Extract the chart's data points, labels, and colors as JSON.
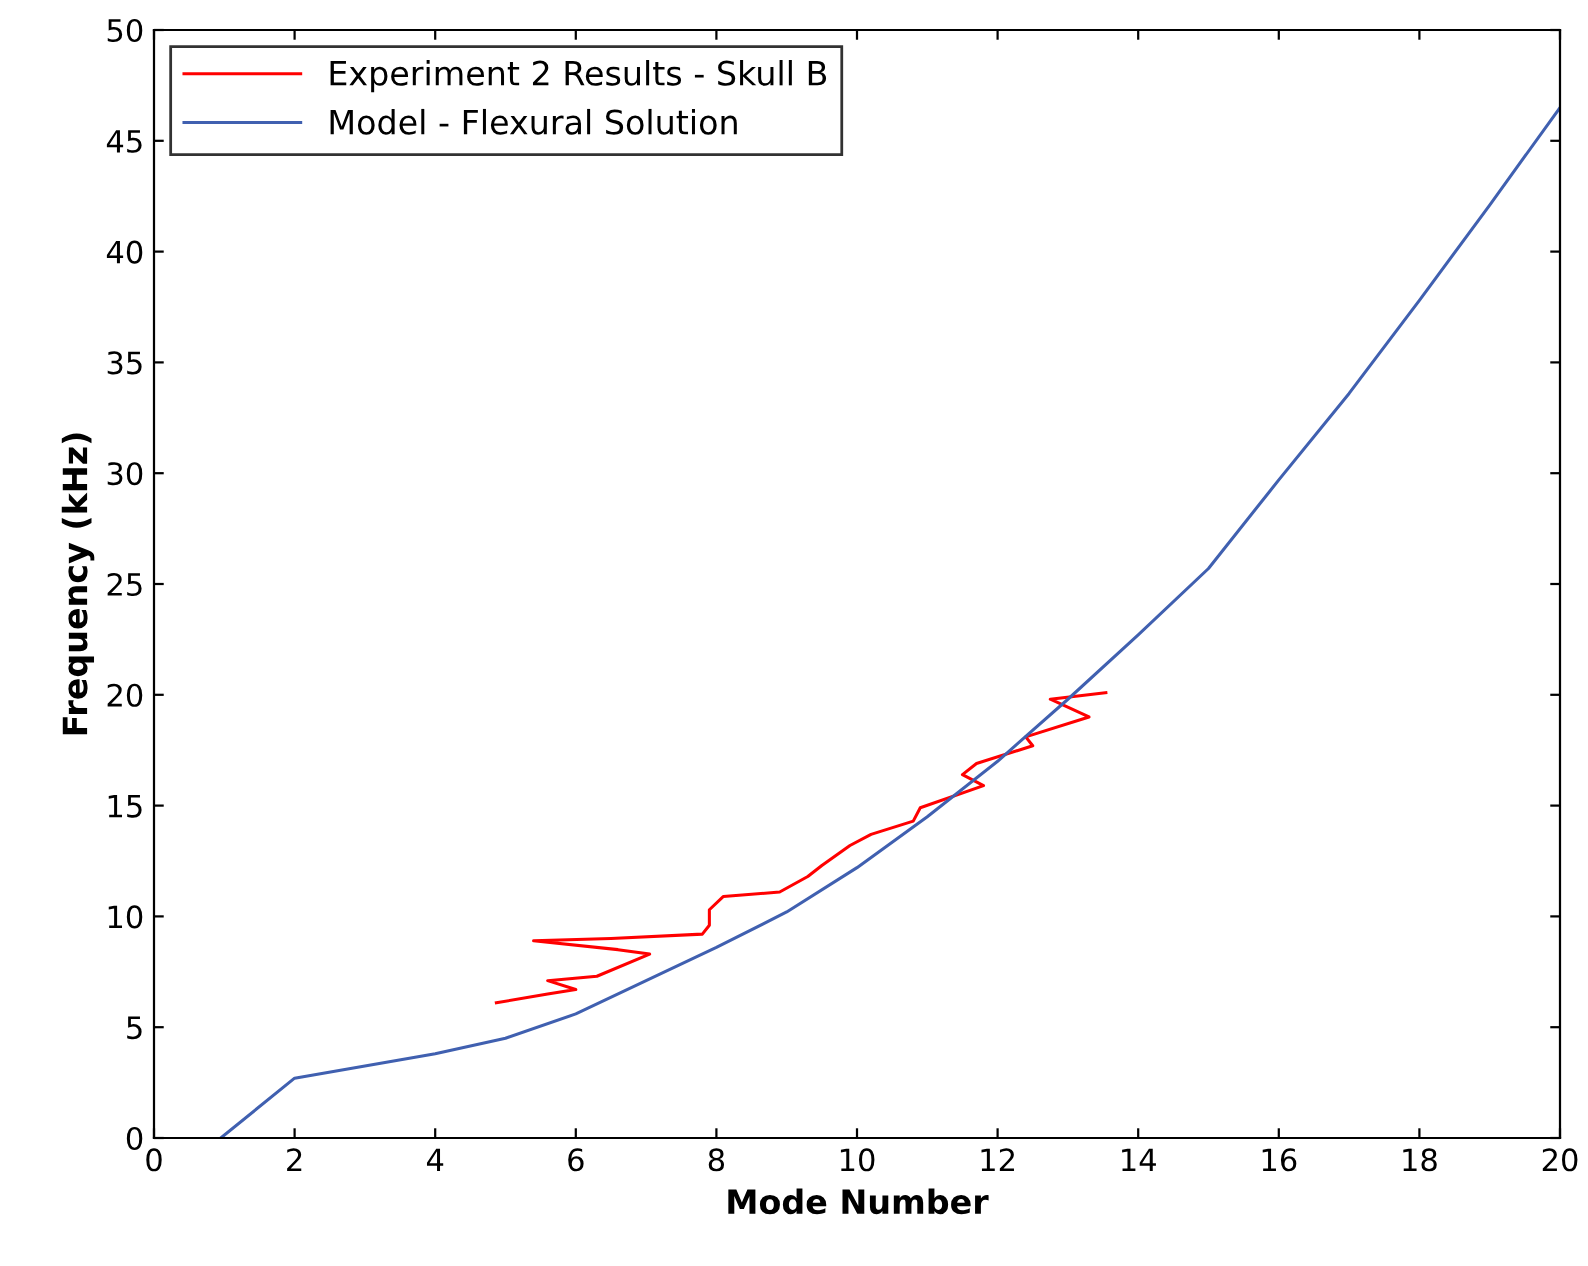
{
  "chart_data": {
    "type": "line",
    "xlabel": "Mode Number",
    "ylabel": "Frequency (kHz)",
    "xlim": [
      0,
      20
    ],
    "ylim": [
      0,
      50
    ],
    "xticks": [
      0,
      2,
      4,
      6,
      8,
      10,
      12,
      14,
      16,
      18,
      20
    ],
    "yticks": [
      0,
      5,
      10,
      15,
      20,
      25,
      30,
      35,
      40,
      45,
      50
    ],
    "grid": false,
    "legend": "top left",
    "line_style": "solid",
    "marker": "none",
    "series": [
      {
        "name": "Experiment 2 Results - Skull B",
        "color": "#ff0000",
        "x": [
          4.87,
          5.6,
          6.0,
          5.6,
          6.3,
          7.05,
          6.6,
          5.4,
          6.5,
          7.8,
          7.9,
          7.9,
          8.1,
          8.9,
          9.3,
          9.5,
          9.9,
          10.2,
          10.8,
          10.9,
          11.8,
          11.5,
          11.7,
          12.5,
          12.4,
          13.3,
          12.75,
          13.54
        ],
        "values": [
          6.1,
          6.5,
          6.7,
          7.1,
          7.3,
          8.3,
          8.5,
          8.9,
          9.0,
          9.2,
          9.6,
          10.3,
          10.9,
          11.1,
          11.8,
          12.3,
          13.2,
          13.7,
          14.3,
          14.9,
          15.9,
          16.4,
          16.9,
          17.7,
          18.1,
          19.0,
          19.8,
          20.1
        ]
      },
      {
        "name": "Model - Flexural Solution",
        "color": "#4060b0",
        "x": [
          0.95,
          2,
          4,
          5,
          6,
          7,
          8,
          9,
          10,
          11,
          12,
          13,
          14,
          15,
          16,
          17,
          18,
          19,
          20
        ],
        "values": [
          0,
          2.7,
          3.8,
          4.5,
          5.6,
          7.1,
          8.6,
          10.2,
          12.2,
          14.5,
          17.0,
          19.8,
          22.7,
          25.7,
          29.7,
          33.6,
          37.8,
          42.1,
          46.5
        ]
      }
    ]
  }
}
